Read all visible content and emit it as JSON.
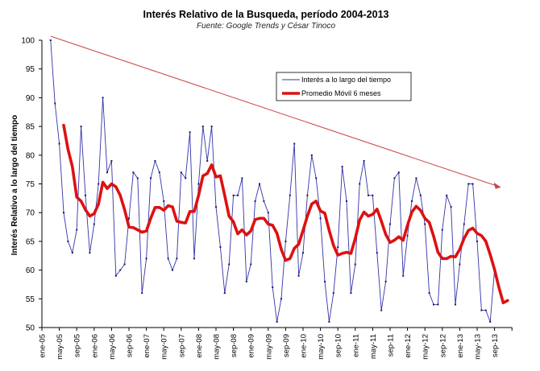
{
  "chart_data": {
    "type": "line",
    "title": "Interés Relativo de la Busqueda, período 2004-2013",
    "subtitle": "Fuente: Google  Trends  y César Tinoco",
    "ylabel": "Interés Relativo  a lo largo del tiempo",
    "xlabel": "",
    "ylim": [
      50,
      100
    ],
    "yticks": [
      50,
      55,
      60,
      65,
      70,
      75,
      80,
      85,
      90,
      95,
      100
    ],
    "x_unit": "month index from ene-05",
    "xticks": [
      "ene-05",
      "may-05",
      "sep-05",
      "ene-06",
      "may-06",
      "sep-06",
      "ene-07",
      "may-07",
      "sep-07",
      "ene-08",
      "may-08",
      "sep-08",
      "ene-09",
      "may-09",
      "sep-09",
      "ene-10",
      "may-10",
      "sep-10",
      "ene-11",
      "may-11",
      "sep-11",
      "ene-12",
      "may-12",
      "sep-12",
      "ene-13",
      "may-13",
      "sep-13"
    ],
    "grid": false,
    "legend_position": "top-center",
    "series": [
      {
        "name": "Interés a lo largo del tiempo",
        "color": "#3333aa",
        "start_month": 2,
        "values": [
          100,
          89,
          82,
          70,
          65,
          63,
          67,
          85,
          73,
          63,
          68,
          75,
          90,
          77,
          79,
          59,
          60,
          61,
          69,
          77,
          76,
          56,
          62,
          76,
          79,
          77,
          72,
          62,
          60,
          62,
          77,
          76,
          84,
          62,
          75,
          85,
          79,
          85,
          71,
          64,
          56,
          61,
          73,
          73,
          76,
          58,
          61,
          72,
          75,
          72,
          70,
          57,
          51,
          55,
          65,
          73,
          82,
          59,
          63,
          73,
          80,
          76,
          69,
          58,
          51,
          56,
          64,
          78,
          72,
          56,
          61,
          75,
          79,
          73,
          73,
          63,
          53,
          58,
          68,
          76,
          77,
          59,
          66,
          72,
          76,
          73,
          68,
          56,
          54,
          54,
          67,
          73,
          71,
          54,
          61,
          68,
          75,
          75,
          65,
          53,
          53,
          51,
          60
        ]
      },
      {
        "name": "Promedio Móvil 6 meses",
        "color": "#dd1111",
        "start_month": 5,
        "values": [
          85.2,
          81,
          78,
          72.7,
          72,
          70.5,
          69.4,
          69.8,
          71.5,
          75.3,
          74.2,
          75,
          74.5,
          73,
          70.5,
          67.5,
          67.4,
          67,
          66.6,
          66.8,
          69,
          70.9,
          70.9,
          70.4,
          71.2,
          71,
          68.5,
          68.3,
          68.2,
          70.2,
          70.2,
          73,
          76.4,
          76.8,
          78.3,
          76.2,
          76.4,
          73,
          69.4,
          68.4,
          66.3,
          67,
          66.1,
          66.8,
          68.8,
          69,
          69,
          68,
          67.8,
          66.4,
          63.6,
          61.7,
          62,
          63.8,
          64.5,
          66.9,
          69.4,
          71.5,
          72,
          70.3,
          69.9,
          66.9,
          64.3,
          62.6,
          62.9,
          63.1,
          62.9,
          65.5,
          68.7,
          70.1,
          69.4,
          69.7,
          70.6,
          68.5,
          66.2,
          64.8,
          65.2,
          65.8,
          65.2,
          67.8,
          70.1,
          71.1,
          70.4,
          69,
          68.3,
          65.9,
          63.1,
          62,
          62,
          62.4,
          62.3,
          63.6,
          65.5,
          66.9,
          67.3,
          66.4,
          66,
          65,
          62.7,
          60.1,
          57,
          54.3,
          54.7
        ]
      }
    ],
    "annotations": [
      {
        "type": "trend-arrow",
        "color": "#cc4444",
        "from": {
          "month": 2,
          "value": 100.7
        },
        "to": {
          "month": 105.5,
          "value": 74.4
        }
      }
    ]
  }
}
